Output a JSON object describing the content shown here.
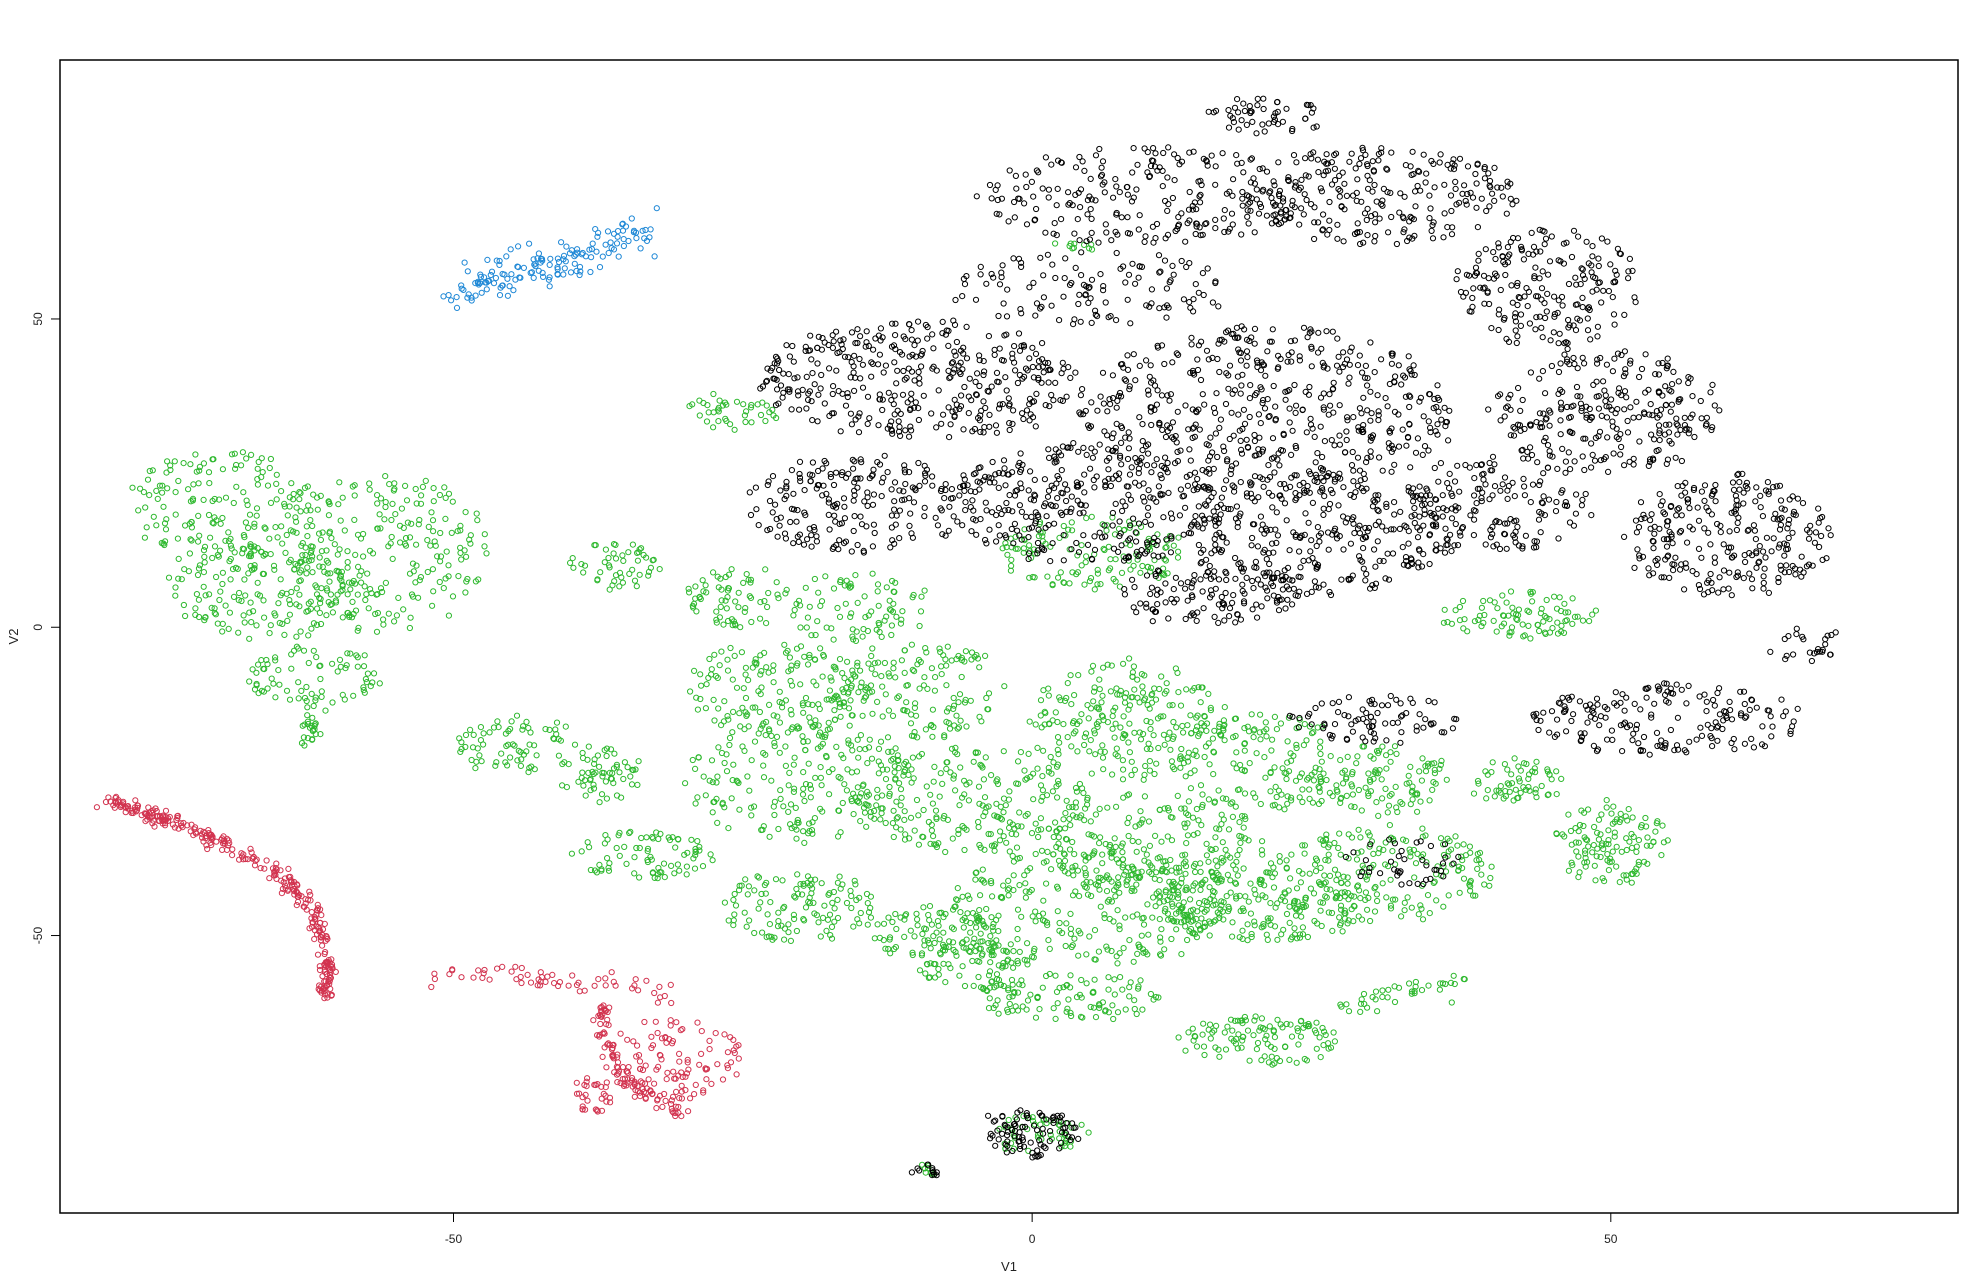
{
  "chart_data": {
    "type": "scatter",
    "title": "",
    "xlabel": "V1",
    "ylabel": "V2",
    "xlim": [
      -84,
      80
    ],
    "ylim": [
      -95,
      92
    ],
    "xticks": [
      -50,
      0,
      50
    ],
    "yticks": [
      -50,
      0,
      50
    ],
    "xtick_labels": [
      "-50",
      "0",
      "50"
    ],
    "ytick_labels": [
      "-50",
      "0",
      "50"
    ],
    "grid": false,
    "marker": "open-circle",
    "colors": {
      "black": "#000000",
      "green": "#2db82d",
      "red": "#d2334f",
      "blue": "#1f88d6"
    },
    "clusters": [
      {
        "color": "blue",
        "kind": "band",
        "pts": [
          [
            -50,
            55
          ],
          [
            -48,
            55
          ],
          [
            -45,
            58
          ],
          [
            -40,
            60
          ],
          [
            -35,
            63
          ],
          [
            -33,
            64
          ]
        ],
        "n": 150,
        "spread": 1.6
      },
      {
        "color": "red",
        "kind": "band",
        "pts": [
          [
            -80,
            -28
          ],
          [
            -75,
            -31
          ],
          [
            -70,
            -35
          ],
          [
            -65,
            -40
          ],
          [
            -62,
            -46
          ],
          [
            -61,
            -52
          ],
          [
            -61,
            -60
          ]
        ],
        "n": 300,
        "spread": 0.6
      },
      {
        "color": "red",
        "kind": "band",
        "pts": [
          [
            -52,
            -57
          ],
          [
            -46,
            -56
          ],
          [
            -40,
            -58
          ],
          [
            -35,
            -58
          ],
          [
            -31,
            -60
          ]
        ],
        "n": 60,
        "spread": 0.8
      },
      {
        "color": "red",
        "kind": "band",
        "pts": [
          [
            -37,
            -61
          ],
          [
            -37,
            -66
          ],
          [
            -36,
            -71
          ],
          [
            -35,
            -74
          ]
        ],
        "n": 50,
        "spread": 0.5
      },
      {
        "color": "red",
        "kind": "blob",
        "c": [
          -31,
          -70
        ],
        "r": [
          6,
          7
        ],
        "n": 110
      },
      {
        "color": "red",
        "kind": "blob",
        "c": [
          -38,
          -76
        ],
        "r": [
          2,
          3
        ],
        "n": 30
      },
      {
        "color": "red",
        "kind": "band",
        "pts": [
          [
            -35,
            -74
          ],
          [
            -32,
            -77
          ],
          [
            -30,
            -79
          ]
        ],
        "n": 40,
        "spread": 0.6
      },
      {
        "color": "green",
        "kind": "blob",
        "c": [
          -70,
          20
        ],
        "r": [
          8,
          9
        ],
        "n": 160
      },
      {
        "color": "green",
        "kind": "blob",
        "c": [
          -66,
          6
        ],
        "r": [
          9,
          8
        ],
        "n": 180
      },
      {
        "color": "green",
        "kind": "blob",
        "c": [
          -56,
          12
        ],
        "r": [
          9,
          13
        ],
        "n": 220
      },
      {
        "color": "green",
        "kind": "blob",
        "c": [
          -62,
          -8
        ],
        "r": [
          6,
          5
        ],
        "n": 70
      },
      {
        "color": "green",
        "kind": "band",
        "pts": [
          [
            -62,
            -12
          ],
          [
            -62,
            -16
          ],
          [
            -63,
            -19
          ]
        ],
        "n": 30,
        "spread": 0.8
      },
      {
        "color": "green",
        "kind": "blob",
        "c": [
          -45,
          -19
        ],
        "r": [
          5,
          5
        ],
        "n": 70
      },
      {
        "color": "green",
        "kind": "blob",
        "c": [
          -37,
          -24
        ],
        "r": [
          4,
          5
        ],
        "n": 60
      },
      {
        "color": "green",
        "kind": "blob",
        "c": [
          -34,
          -37
        ],
        "r": [
          6,
          4
        ],
        "n": 80
      },
      {
        "color": "green",
        "kind": "blob",
        "c": [
          -36,
          10
        ],
        "r": [
          4,
          4
        ],
        "n": 50
      },
      {
        "color": "green",
        "kind": "blob",
        "c": [
          -26,
          35
        ],
        "r": [
          4,
          3
        ],
        "n": 40
      },
      {
        "color": "green",
        "kind": "blob",
        "c": [
          -25,
          5
        ],
        "r": [
          5,
          5
        ],
        "n": 70
      },
      {
        "color": "green",
        "kind": "blob",
        "c": [
          -22,
          -10
        ],
        "r": [
          8,
          8
        ],
        "n": 150
      },
      {
        "color": "green",
        "kind": "blob",
        "c": [
          -10,
          -10
        ],
        "r": [
          8,
          8
        ],
        "n": 150
      },
      {
        "color": "green",
        "kind": "blob",
        "c": [
          -15,
          3
        ],
        "r": [
          6,
          6
        ],
        "n": 80
      },
      {
        "color": "green",
        "kind": "blob",
        "c": [
          -20,
          -25
        ],
        "r": [
          10,
          10
        ],
        "n": 220
      },
      {
        "color": "green",
        "kind": "blob",
        "c": [
          -5,
          -28
        ],
        "r": [
          10,
          9
        ],
        "n": 220
      },
      {
        "color": "green",
        "kind": "blob",
        "c": [
          -20,
          -45
        ],
        "r": [
          7,
          6
        ],
        "n": 120
      },
      {
        "color": "green",
        "kind": "blob",
        "c": [
          -8,
          -50
        ],
        "r": [
          6,
          5
        ],
        "n": 100
      },
      {
        "color": "green",
        "kind": "blob",
        "c": [
          5,
          -45
        ],
        "r": [
          12,
          10
        ],
        "n": 280
      },
      {
        "color": "green",
        "kind": "blob",
        "c": [
          10,
          -35
        ],
        "r": [
          10,
          8
        ],
        "n": 200
      },
      {
        "color": "green",
        "kind": "blob",
        "c": [
          -5,
          -55
        ],
        "r": [
          5,
          4
        ],
        "n": 70
      },
      {
        "color": "green",
        "kind": "blob",
        "c": [
          3,
          -60
        ],
        "r": [
          8,
          4
        ],
        "n": 100
      },
      {
        "color": "green",
        "kind": "blob",
        "c": [
          8,
          -15
        ],
        "r": [
          8,
          10
        ],
        "n": 220
      },
      {
        "color": "green",
        "kind": "blob",
        "c": [
          20,
          -22
        ],
        "r": [
          8,
          8
        ],
        "n": 160
      },
      {
        "color": "green",
        "kind": "blob",
        "c": [
          20,
          -45
        ],
        "r": [
          10,
          6
        ],
        "n": 200
      },
      {
        "color": "green",
        "kind": "blob",
        "c": [
          30,
          -40
        ],
        "r": [
          10,
          8
        ],
        "n": 200
      },
      {
        "color": "green",
        "kind": "blob",
        "c": [
          30,
          -25
        ],
        "r": [
          6,
          6
        ],
        "n": 100
      },
      {
        "color": "green",
        "kind": "blob",
        "c": [
          20,
          -67
        ],
        "r": [
          7,
          4
        ],
        "n": 110
      },
      {
        "color": "green",
        "kind": "band",
        "pts": [
          [
            27,
            -62
          ],
          [
            30,
            -60
          ],
          [
            33,
            -59
          ],
          [
            37,
            -58
          ]
        ],
        "n": 40,
        "spread": 1.0
      },
      {
        "color": "green",
        "kind": "blob",
        "c": [
          50,
          -35
        ],
        "r": [
          5,
          7
        ],
        "n": 120
      },
      {
        "color": "green",
        "kind": "blob",
        "c": [
          42,
          -25
        ],
        "r": [
          4,
          4
        ],
        "n": 60
      },
      {
        "color": "green",
        "kind": "blob",
        "c": [
          42,
          2
        ],
        "r": [
          7,
          4
        ],
        "n": 90
      },
      {
        "color": "green",
        "kind": "blob",
        "c": [
          5,
          12
        ],
        "r": [
          8,
          6
        ],
        "n": 130
      },
      {
        "color": "green",
        "kind": "blob",
        "c": [
          0,
          -82
        ],
        "r": [
          4,
          3
        ],
        "n": 50
      },
      {
        "color": "green",
        "kind": "blob",
        "c": [
          -9,
          -88
        ],
        "r": [
          1,
          1
        ],
        "n": 8
      },
      {
        "color": "green",
        "kind": "blob",
        "c": [
          4,
          62
        ],
        "r": [
          2,
          1
        ],
        "n": 10
      },
      {
        "color": "black",
        "kind": "blob",
        "c": [
          -10,
          40
        ],
        "r": [
          14,
          10
        ],
        "n": 380
      },
      {
        "color": "black",
        "kind": "blob",
        "c": [
          -15,
          20
        ],
        "r": [
          10,
          8
        ],
        "n": 200
      },
      {
        "color": "black",
        "kind": "blob",
        "c": [
          10,
          70
        ],
        "r": [
          14,
          8
        ],
        "n": 240
      },
      {
        "color": "black",
        "kind": "blob",
        "c": [
          5,
          55
        ],
        "r": [
          12,
          6
        ],
        "n": 120
      },
      {
        "color": "black",
        "kind": "blob",
        "c": [
          30,
          70
        ],
        "r": [
          12,
          8
        ],
        "n": 240
      },
      {
        "color": "black",
        "kind": "blob",
        "c": [
          20,
          83
        ],
        "r": [
          5,
          3
        ],
        "n": 50
      },
      {
        "color": "black",
        "kind": "blob",
        "c": [
          20,
          35
        ],
        "r": [
          16,
          14
        ],
        "n": 520
      },
      {
        "color": "black",
        "kind": "blob",
        "c": [
          5,
          20
        ],
        "r": [
          12,
          10
        ],
        "n": 320
      },
      {
        "color": "black",
        "kind": "blob",
        "c": [
          25,
          15
        ],
        "r": [
          12,
          10
        ],
        "n": 320
      },
      {
        "color": "black",
        "kind": "blob",
        "c": [
          45,
          55
        ],
        "r": [
          8,
          10
        ],
        "n": 200
      },
      {
        "color": "black",
        "kind": "blob",
        "c": [
          50,
          35
        ],
        "r": [
          10,
          10
        ],
        "n": 260
      },
      {
        "color": "black",
        "kind": "blob",
        "c": [
          60,
          15
        ],
        "r": [
          9,
          10
        ],
        "n": 260
      },
      {
        "color": "black",
        "kind": "blob",
        "c": [
          40,
          20
        ],
        "r": [
          8,
          8
        ],
        "n": 160
      },
      {
        "color": "black",
        "kind": "blob",
        "c": [
          15,
          5
        ],
        "r": [
          8,
          5
        ],
        "n": 120
      },
      {
        "color": "black",
        "kind": "blob",
        "c": [
          55,
          -15
        ],
        "r": [
          12,
          6
        ],
        "n": 180
      },
      {
        "color": "black",
        "kind": "blob",
        "c": [
          30,
          -15
        ],
        "r": [
          8,
          4
        ],
        "n": 80
      },
      {
        "color": "black",
        "kind": "blob",
        "c": [
          32,
          -38
        ],
        "r": [
          5,
          4
        ],
        "n": 40
      },
      {
        "color": "black",
        "kind": "blob",
        "c": [
          67,
          -3
        ],
        "r": [
          3,
          3
        ],
        "n": 25
      },
      {
        "color": "black",
        "kind": "blob",
        "c": [
          0,
          -82
        ],
        "r": [
          4,
          4
        ],
        "n": 90
      },
      {
        "color": "black",
        "kind": "blob",
        "c": [
          -9,
          -88
        ],
        "r": [
          1,
          1
        ],
        "n": 12
      }
    ]
  }
}
